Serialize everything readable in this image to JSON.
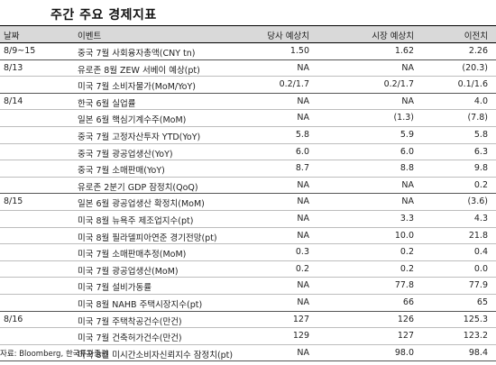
{
  "title": "주간 주요 경제지표",
  "headers": {
    "date": "날짜",
    "event": "이벤트",
    "estimate": "당사 예상치",
    "consensus": "시장 예상치",
    "previous": "이전치"
  },
  "groups": [
    {
      "date": "8/9~15",
      "rows": [
        {
          "event": "중국 7월 사회융자총액(CNY tn)",
          "estimate": "1.50",
          "consensus": "1.62",
          "previous": "2.26"
        }
      ]
    },
    {
      "date": "8/13",
      "rows": [
        {
          "event": "유로존 8월 ZEW 서베이 예상(pt)",
          "estimate": "NA",
          "consensus": "NA",
          "previous": "(20.3)"
        },
        {
          "event": "미국 7월 소비자물가(MoM/YoY)",
          "estimate": "0.2/1.7",
          "consensus": "0.2/1.7",
          "previous": "0.1/1.6"
        }
      ]
    },
    {
      "date": "8/14",
      "rows": [
        {
          "event": "한국 6월 실업률",
          "estimate": "NA",
          "consensus": "NA",
          "previous": "4.0"
        },
        {
          "event": "일본 6월 핵심기계수주(MoM)",
          "estimate": "NA",
          "consensus": "(1.3)",
          "previous": "(7.8)"
        },
        {
          "event": "중국 7월 고정자산투자 YTD(YoY)",
          "estimate": "5.8",
          "consensus": "5.9",
          "previous": "5.8"
        },
        {
          "event": "중국 7월 광공업생산(YoY)",
          "estimate": "6.0",
          "consensus": "6.0",
          "previous": "6.3"
        },
        {
          "event": "중국 7월 소매판매(YoY)",
          "estimate": "8.7",
          "consensus": "8.8",
          "previous": "9.8"
        },
        {
          "event": "유로존 2분기 GDP 잠정치(QoQ)",
          "estimate": "NA",
          "consensus": "NA",
          "previous": "0.2"
        }
      ]
    },
    {
      "date": "8/15",
      "rows": [
        {
          "event": "일본 6월 광공업생산 확정치(MoM)",
          "estimate": "NA",
          "consensus": "NA",
          "previous": "(3.6)"
        },
        {
          "event": "미국 8월 뉴욕주 제조업지수(pt)",
          "estimate": "NA",
          "consensus": "3.3",
          "previous": "4.3"
        },
        {
          "event": "미국 8월 필라델피아연준 경기전망(pt)",
          "estimate": "NA",
          "consensus": "10.0",
          "previous": "21.8"
        },
        {
          "event": "미국 7월 소매판매추정(MoM)",
          "estimate": "0.3",
          "consensus": "0.2",
          "previous": "0.4"
        },
        {
          "event": "미국 7월 광공업생산(MoM)",
          "estimate": "0.2",
          "consensus": "0.2",
          "previous": "0.0"
        },
        {
          "event": "미국 7월 설비가동률",
          "estimate": "NA",
          "consensus": "77.8",
          "previous": "77.9"
        },
        {
          "event": "미국 8월 NAHB 주택시장지수(pt)",
          "estimate": "NA",
          "consensus": "66",
          "previous": "65"
        }
      ]
    },
    {
      "date": "8/16",
      "rows": [
        {
          "event": "미국 7월 주택착공건수(만건)",
          "estimate": "127",
          "consensus": "126",
          "previous": "125.3"
        },
        {
          "event": "미국 7월 건축허가건수(만건)",
          "estimate": "129",
          "consensus": "127",
          "previous": "123.2"
        },
        {
          "event": "미국 8월 미시간소비자신뢰지수 잠정치(pt)",
          "estimate": "NA",
          "consensus": "98.0",
          "previous": "98.4"
        }
      ]
    }
  ],
  "source": "자료: Bloomberg, 한국투자증권"
}
